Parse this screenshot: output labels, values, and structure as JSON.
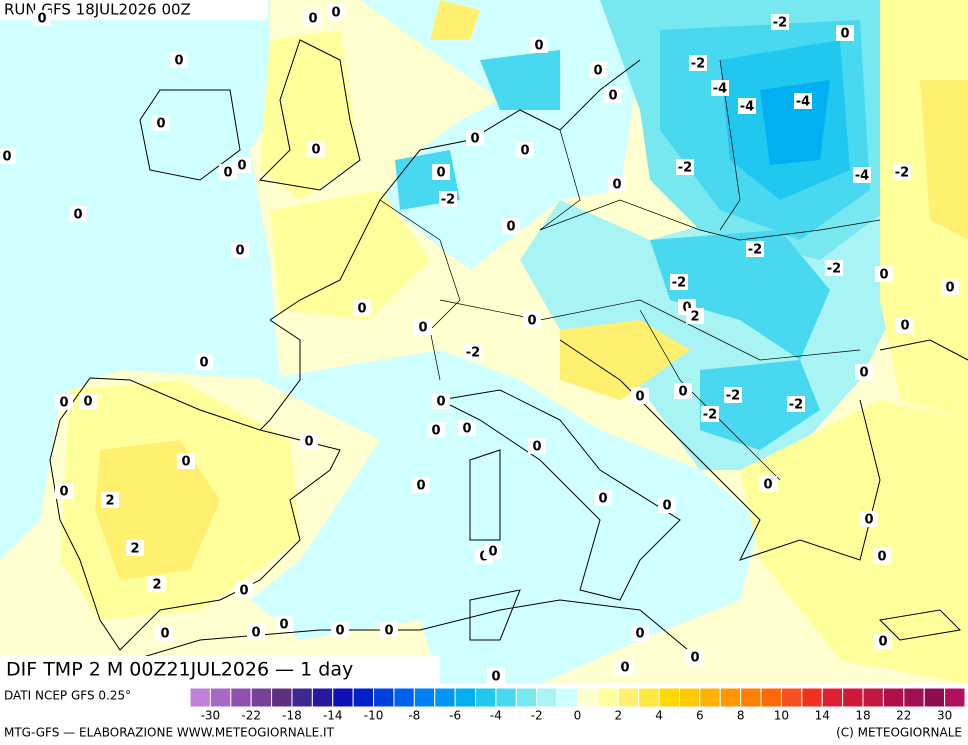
{
  "header": {
    "run": "RUN GFS 18JUL2026 00Z",
    "field": "DIF TMP 2 M 00Z21JUL2026 — 1 day"
  },
  "contour_labels": [
    0,
    0,
    0,
    0,
    0,
    -2,
    0,
    -2,
    0,
    -4,
    0,
    -4,
    -4,
    0,
    0,
    0,
    0,
    0,
    0,
    0,
    -2,
    -4,
    -2,
    0,
    -2,
    0,
    0,
    0,
    0,
    -2,
    -2,
    0,
    0,
    -2,
    0,
    0,
    0,
    0,
    2,
    0,
    -2,
    0,
    0,
    0,
    0,
    0,
    0,
    0,
    -2,
    -2,
    -2,
    0,
    0,
    0,
    0,
    0,
    0,
    0,
    2,
    0,
    0,
    0,
    0,
    2,
    0,
    0,
    0,
    2,
    0,
    0,
    0,
    0,
    0,
    0,
    0,
    0,
    0,
    0,
    0
  ],
  "legend": {
    "source": "DATI NCEP GFS 0.25°",
    "colors": [
      "#c080d8",
      "#a868c8",
      "#9050b0",
      "#784098",
      "#603080",
      "#402890",
      "#2818a0",
      "#1010b8",
      "#0020d0",
      "#0040e0",
      "#0060f0",
      "#0080f8",
      "#0098f8",
      "#00b0f0",
      "#20c8f0",
      "#48d8f0",
      "#78e8f0",
      "#a8f4f4",
      "#d0ffff",
      "#ffffd0",
      "#ffff9c",
      "#fff070",
      "#ffe840",
      "#ffd800",
      "#ffc800",
      "#ffb000",
      "#ff9800",
      "#ff8000",
      "#ff6800",
      "#f85020",
      "#f03020",
      "#e02030",
      "#d01838",
      "#c01840",
      "#b01048",
      "#a01050",
      "#900c50",
      "#b0105c"
    ],
    "ticks": [
      -30,
      -22,
      -18,
      -14,
      -10,
      -8,
      -6,
      -4,
      -2,
      0,
      2,
      4,
      6,
      8,
      10,
      14,
      18,
      22,
      30
    ]
  },
  "footer": {
    "left": "MTG-GFS — ELABORAZIONE WWW.METEOGIORNALE.IT",
    "right": "(C) METEOGIORNALE"
  }
}
